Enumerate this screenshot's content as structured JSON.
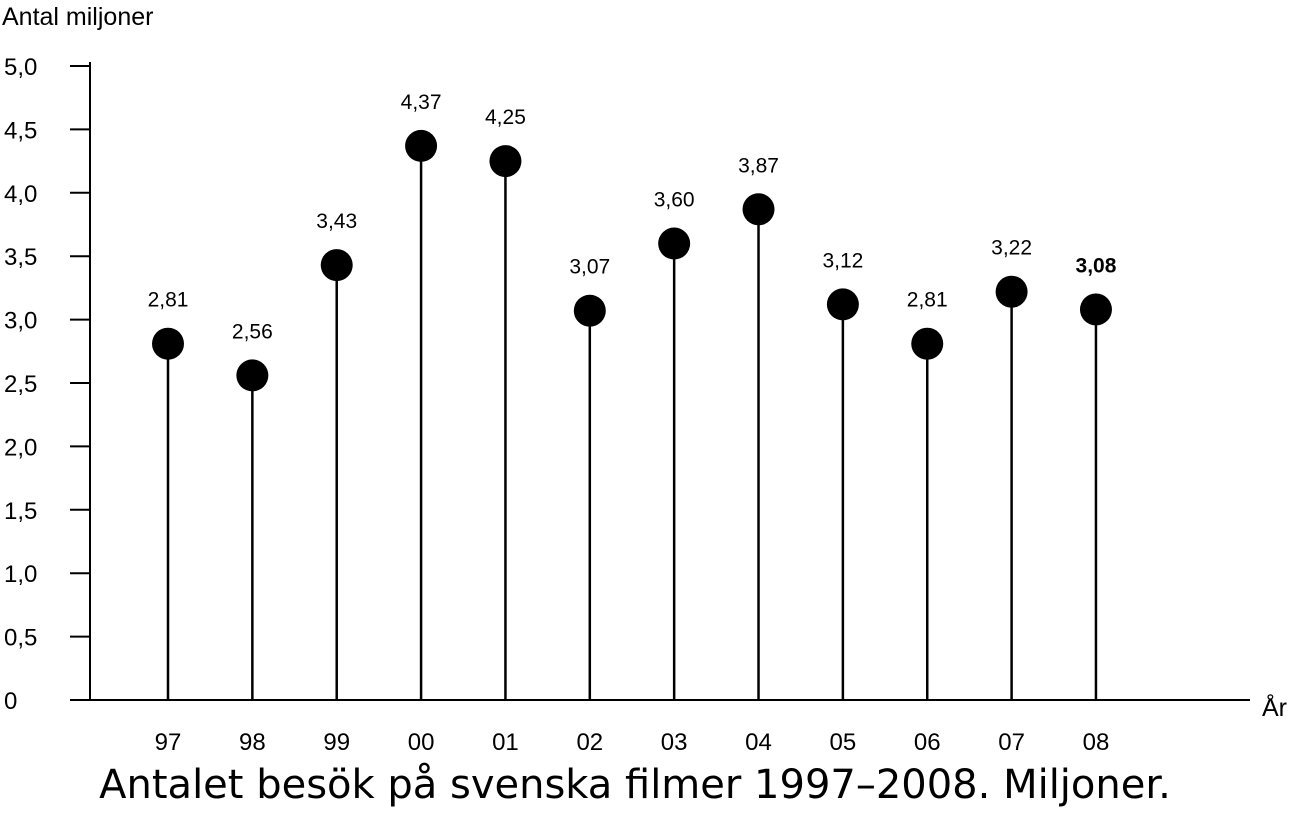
{
  "caption": "Antalet besök på svenska filmer 1997–2008. Miljoner.",
  "chart_data": {
    "type": "scatter",
    "style": "lollipop",
    "ylabel": "Antal miljoner",
    "xlabel": "År",
    "ylim": [
      0,
      5.0
    ],
    "yticks": [
      "0",
      "0,5",
      "1,0",
      "1,5",
      "2,0",
      "2,5",
      "3,0",
      "3,5",
      "4,0",
      "4,5",
      "5,0"
    ],
    "categories": [
      "97",
      "98",
      "99",
      "00",
      "01",
      "02",
      "03",
      "04",
      "05",
      "06",
      "07",
      "08"
    ],
    "values": [
      2.81,
      2.56,
      3.43,
      4.37,
      4.25,
      3.07,
      3.6,
      3.87,
      3.12,
      2.81,
      3.22,
      3.08
    ],
    "labels": [
      "2,81",
      "2,56",
      "3,43",
      "4,37",
      "4,25",
      "3,07",
      "3,60",
      "3,87",
      "3,12",
      "2,81",
      "3,22",
      "3,08"
    ],
    "highlight_last_label": true,
    "grid": false,
    "marker_color": "#000000"
  }
}
